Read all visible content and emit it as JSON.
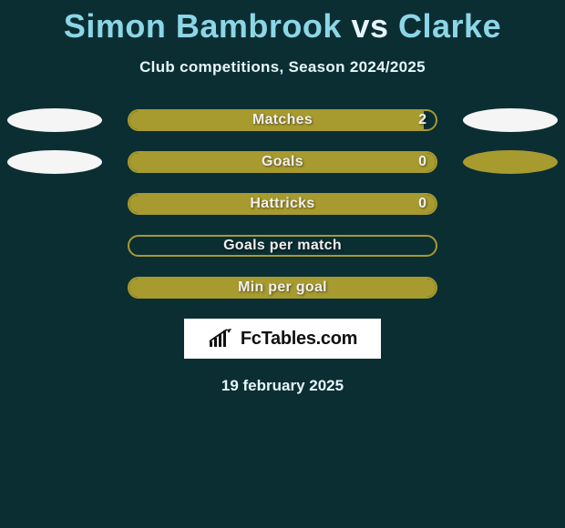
{
  "title": {
    "player1": "Simon Bambrook",
    "vs": "vs",
    "player2": "Clarke",
    "player1_color": "#8cd6e6",
    "vs_color": "#e6f6fa",
    "player2_color": "#8cd6e6",
    "fontsize": 36
  },
  "subtitle": "Club competitions, Season 2024/2025",
  "background_color": "#0b2e33",
  "bar_color": "#a79a2f",
  "ellipse_white": "#f5f5f5",
  "ellipse_olive": "#a79a2f",
  "rows": [
    {
      "label": "Matches",
      "value_right": "2",
      "fill_pct": 96,
      "show_left_ellipse": true,
      "left_ellipse_color": "white",
      "show_right_ellipse": true,
      "right_ellipse_color": "white"
    },
    {
      "label": "Goals",
      "value_right": "0",
      "fill_pct": 100,
      "show_left_ellipse": true,
      "left_ellipse_color": "white",
      "show_right_ellipse": true,
      "right_ellipse_color": "olive"
    },
    {
      "label": "Hattricks",
      "value_right": "0",
      "fill_pct": 100,
      "show_left_ellipse": false,
      "show_right_ellipse": false
    },
    {
      "label": "Goals per match",
      "value_right": "",
      "fill_pct": 0,
      "show_left_ellipse": false,
      "show_right_ellipse": false
    },
    {
      "label": "Min per goal",
      "value_right": "",
      "fill_pct": 100,
      "show_left_ellipse": false,
      "show_right_ellipse": false
    }
  ],
  "logo": {
    "text": "FcTables.com",
    "box_bg": "#ffffff"
  },
  "date": "19 february 2025"
}
